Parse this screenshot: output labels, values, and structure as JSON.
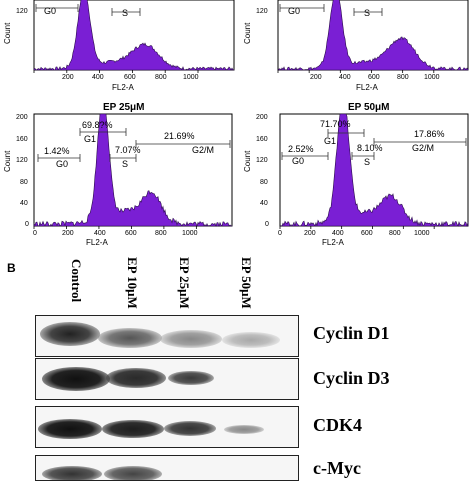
{
  "panelA": {
    "histograms": [
      {
        "title": "",
        "y_axis_label": "Count",
        "x_axis_label": "FL2-A",
        "y_ticks": [
          "120"
        ],
        "x_ticks": [
          "200",
          "400",
          "600",
          "800",
          "1000"
        ],
        "gates": [
          {
            "name": "G0",
            "value": ""
          },
          {
            "name": "S",
            "value": ""
          }
        ]
      },
      {
        "title": "",
        "y_axis_label": "Count",
        "x_axis_label": "FL2-A",
        "y_ticks": [
          "120"
        ],
        "x_ticks": [
          "200",
          "400",
          "600",
          "800",
          "1000"
        ],
        "gates": [
          {
            "name": "G0",
            "value": ""
          },
          {
            "name": "S",
            "value": ""
          }
        ]
      },
      {
        "title": "EP 25μM",
        "y_axis_label": "Count",
        "x_axis_label": "FL2-A",
        "y_ticks": [
          "200",
          "160",
          "120",
          "80",
          "40",
          "0"
        ],
        "x_ticks": [
          "0",
          "200",
          "400",
          "600",
          "800",
          "1000"
        ],
        "gates": [
          {
            "name": "G0",
            "value": "1.42%"
          },
          {
            "name": "G1",
            "value": "69.8?%"
          },
          {
            "name": "S",
            "value": "7.07%"
          },
          {
            "name": "G2/M",
            "value": "21.69%"
          }
        ]
      },
      {
        "title": "EP 50μM",
        "y_axis_label": "Count",
        "x_axis_label": "FL2-A",
        "y_ticks": [
          "200",
          "160",
          "120",
          "80",
          "40",
          "0"
        ],
        "x_ticks": [
          "0",
          "200",
          "400",
          "600",
          "800",
          "1000"
        ],
        "gates": [
          {
            "name": "G0",
            "value": "2.52%"
          },
          {
            "name": "G1",
            "value": "71.70%"
          },
          {
            "name": "S",
            "value": "8.10%"
          },
          {
            "name": "G2/M",
            "value": "17.86%"
          }
        ]
      }
    ],
    "colors": {
      "histogram_fill": "#7a1fd4",
      "histogram_edge": "#2a0a4a",
      "gate_line": "#333333"
    }
  },
  "panelB": {
    "label": "B",
    "lanes": [
      "Control",
      "EP 10μM",
      "EP 25μM",
      "EP 50μM"
    ],
    "proteins": [
      "Cyclin D1",
      "Cyclin D3",
      "CDK4",
      "c-Myc"
    ]
  }
}
